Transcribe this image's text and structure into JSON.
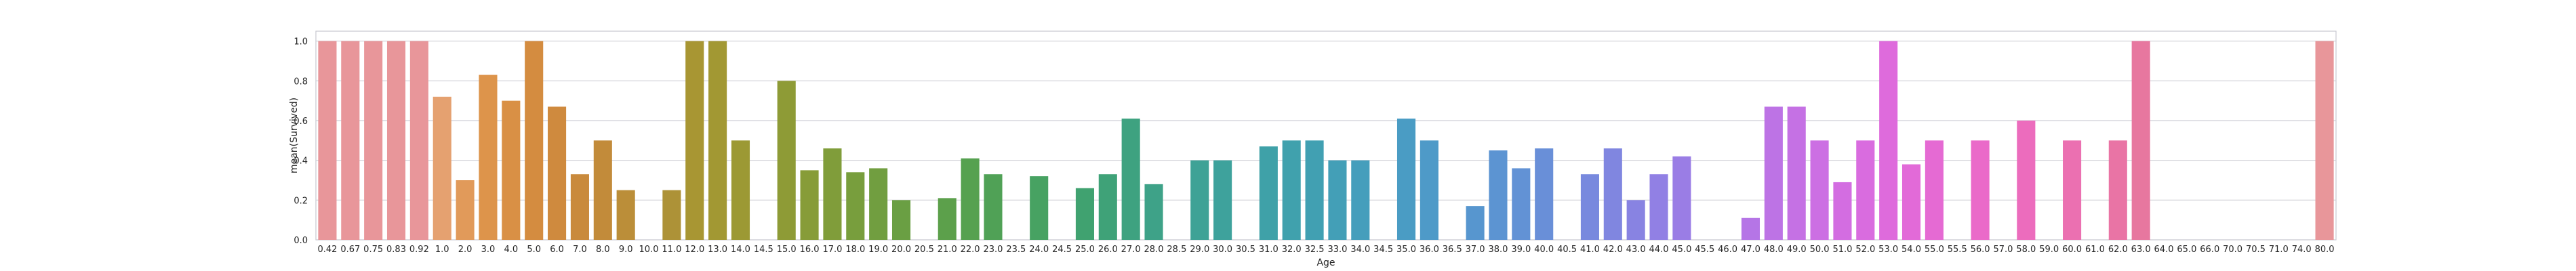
{
  "chart_data": {
    "type": "bar",
    "xlabel": "Age",
    "ylabel": "mean(Survived)",
    "ylim": [
      0,
      1.05
    ],
    "y_ticks": [
      "0.0",
      "0.2",
      "0.4",
      "0.6",
      "0.8",
      "1.0"
    ],
    "grid": true,
    "categories": [
      "0.42",
      "0.67",
      "0.75",
      "0.83",
      "0.92",
      "1.0",
      "2.0",
      "3.0",
      "4.0",
      "5.0",
      "6.0",
      "7.0",
      "8.0",
      "9.0",
      "10.0",
      "11.0",
      "12.0",
      "13.0",
      "14.0",
      "14.5",
      "15.0",
      "16.0",
      "17.0",
      "18.0",
      "19.0",
      "20.0",
      "20.5",
      "21.0",
      "22.0",
      "23.0",
      "23.5",
      "24.0",
      "24.5",
      "25.0",
      "26.0",
      "27.0",
      "28.0",
      "28.5",
      "29.0",
      "30.0",
      "30.5",
      "31.0",
      "32.0",
      "32.5",
      "33.0",
      "34.0",
      "34.5",
      "35.0",
      "36.0",
      "36.5",
      "37.0",
      "38.0",
      "39.0",
      "40.0",
      "40.5",
      "41.0",
      "42.0",
      "43.0",
      "44.0",
      "45.0",
      "45.5",
      "46.0",
      "47.0",
      "48.0",
      "49.0",
      "50.0",
      "51.0",
      "52.0",
      "53.0",
      "54.0",
      "55.0",
      "55.5",
      "56.0",
      "57.0",
      "58.0",
      "59.0",
      "60.0",
      "61.0",
      "62.0",
      "63.0",
      "64.0",
      "65.0",
      "66.0",
      "70.0",
      "70.5",
      "71.0",
      "74.0",
      "80.0"
    ],
    "values": [
      1.0,
      1.0,
      1.0,
      1.0,
      1.0,
      0.72,
      0.3,
      0.83,
      0.7,
      1.0,
      0.67,
      0.33,
      0.5,
      0.25,
      0,
      0.25,
      1.0,
      1.0,
      0.5,
      0,
      0.8,
      0.35,
      0.46,
      0.34,
      0.36,
      0.2,
      0,
      0.21,
      0.41,
      0.33,
      0,
      0.32,
      0,
      0.26,
      0.33,
      0.61,
      0.28,
      0,
      0.4,
      0.4,
      0,
      0.47,
      0.5,
      0.5,
      0.4,
      0.4,
      0,
      0.61,
      0.5,
      0,
      0.17,
      0.45,
      0.36,
      0.46,
      0,
      0.33,
      0.46,
      0.2,
      0.33,
      0.42,
      0,
      0,
      0.11,
      0.67,
      0.67,
      0.5,
      0.29,
      0.5,
      1.0,
      0.38,
      0.5,
      0,
      0.5,
      0,
      0.6,
      0,
      0.5,
      0,
      0.5,
      1.0,
      0,
      0,
      0,
      0,
      0,
      0,
      0,
      1.0
    ],
    "colors": [
      "#e8969a",
      "#e8969a",
      "#e8969a",
      "#e8969a",
      "#e8969a",
      "#e6986d",
      "#e49152",
      "#e08e45",
      "#dc8a40",
      "#d9873b",
      "#d5843a",
      "#cf8339",
      "#c98337",
      "#c38536",
      "#bd8735",
      "#b78934",
      "#b08b33",
      "#a98d32",
      "#a28f32",
      "#9b9131",
      "#949332",
      "#8d9533",
      "#869735",
      "#7f9937",
      "#789b39",
      "#719d3c",
      "#6a9f40",
      "#63a145",
      "#5ca34b",
      "#55a552",
      "#4fa759",
      "#4aa861",
      "#45a969",
      "#42a971",
      "#40a979",
      "#3fa880",
      "#3ea888",
      "#3ea78f",
      "#3ea796",
      "#3ea69c",
      "#3ea6a2",
      "#3ea5a8",
      "#3fa4ae",
      "#40a3b3",
      "#41a2b8",
      "#43a1bd",
      "#45a0c2",
      "#479fc6",
      "#4a9dca",
      "#4e9bce",
      "#5399d2",
      "#5897d5",
      "#5e94d8",
      "#6592db",
      "#6d8fde",
      "#758ce0",
      "#7e89e2",
      "#8786e4",
      "#9083e5",
      "#9980e6",
      "#a27de6",
      "#ab7ae6",
      "#b477e6",
      "#bd74e5",
      "#c571e4",
      "#cd6ee2",
      "#d56ce0",
      "#dc6ade",
      "#e268db",
      "#e767d8",
      "#eb66d4",
      "#ee66d0",
      "#f066cb",
      "#f167c6",
      "#f168c1",
      "#f06abc",
      "#ee6cb6",
      "#ec6fb0",
      "#e972aa",
      "#e676a4",
      "#e27a9e",
      "#de7e98",
      "#da8292",
      "#d6868c",
      "#d28a86",
      "#ce8e80",
      "#ca927b",
      "#e8969a"
    ],
    "colors_adjusted": [
      "#e8969a",
      "#e8969a",
      "#e8969a",
      "#e8969a",
      "#e8969a",
      "#e5a170",
      "#e19a5a",
      "#dd944b",
      "#d99045",
      "#d48c40",
      "#cf8a3e",
      "#c98a3c",
      "#c28b3a",
      "#bb8e39",
      "#b49038",
      "#ad9237",
      "#a89633",
      "#a29833",
      "#9c9934",
      "#959a35",
      "#8e9b36",
      "#879c38",
      "#809d3a",
      "#789e3d",
      "#719e40",
      "#6a9f43",
      "#63a047",
      "#5ca04b",
      "#56a150",
      "#50a156",
      "#4ba15c",
      "#47a262",
      "#43a269",
      "#40a270",
      "#3fa278",
      "#3ea280",
      "#3ea288",
      "#3ea28f",
      "#3ea296",
      "#3ea29c",
      "#3ea2a2",
      "#3fa1a8",
      "#40a1ad",
      "#41a0b2",
      "#439fb7",
      "#459ebc",
      "#479dc0",
      "#4a9cc4",
      "#4e9ac8",
      "#5298cc",
      "#5796cf",
      "#5c94d2",
      "#6292d5",
      "#698fd8",
      "#708cdb",
      "#7889de",
      "#8086e0",
      "#8883e2",
      "#9180e4",
      "#9a7de5",
      "#a47ae6",
      "#ad78e6",
      "#b575e6",
      "#bd73e5",
      "#c571e4",
      "#cc6fe3",
      "#d36de1",
      "#d96cdf",
      "#de6bdc",
      "#e26ad8",
      "#e56ad3",
      "#e86ace",
      "#ea6ac9",
      "#eb6bc3",
      "#ec6cbd",
      "#ec6eb7",
      "#eb70b1",
      "#ea72ab",
      "#e974a5",
      "#e7779f",
      "#e57a99",
      "#e37d93",
      "#e0808d",
      "#dd8388",
      "#da8683",
      "#d7897f",
      "#d48c7b",
      "#e8969a"
    ]
  }
}
